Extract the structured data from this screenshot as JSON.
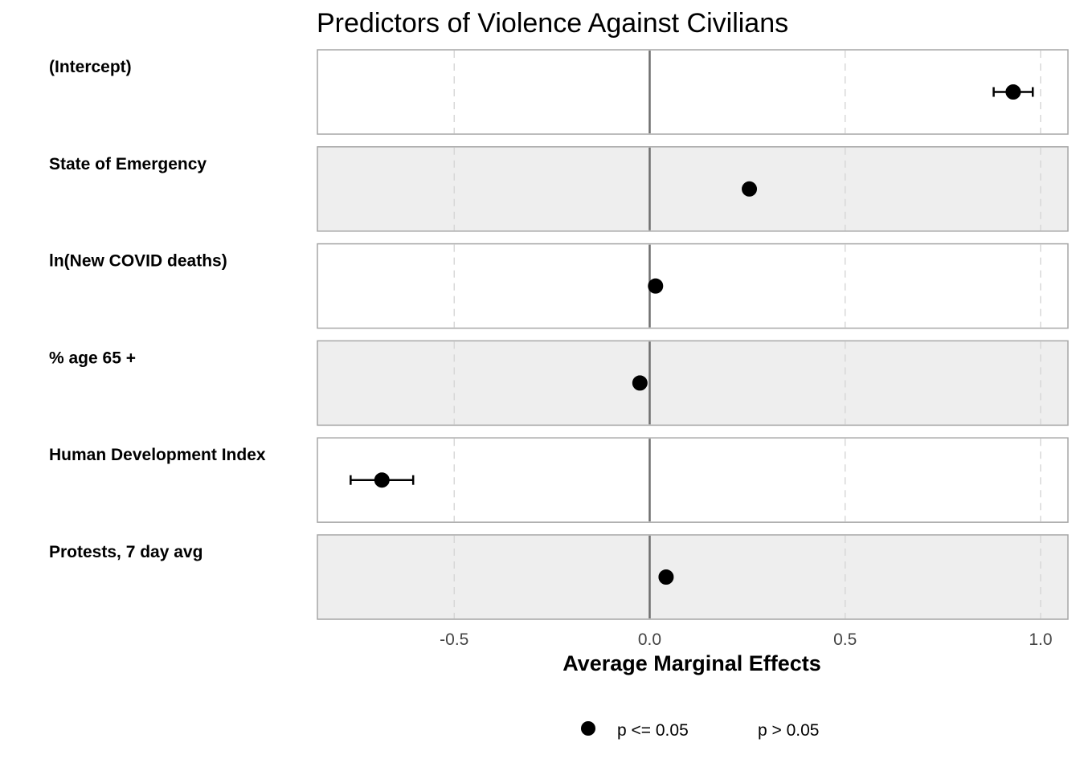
{
  "chart_data": {
    "type": "scatter",
    "subtype": "coefficient-plot",
    "title": "Predictors of Violence Against Civilians",
    "xlabel": "Average Marginal Effects",
    "ylabel": "",
    "xlim": [
      -0.85,
      1.07
    ],
    "x_ticks": [
      -0.5,
      0.0,
      0.5,
      1.0
    ],
    "x_tick_labels": [
      "-0.5",
      "0.0",
      "0.5",
      "1.0"
    ],
    "reference_line": 0.0,
    "grid": "vertical dashed",
    "row_backgrounds": [
      "#ffffff",
      "#eeeeee"
    ],
    "rows": [
      {
        "label": "(Intercept)",
        "estimate": 0.93,
        "ci_low": 0.88,
        "ci_high": 0.98,
        "significant": true
      },
      {
        "label": "State of Emergency",
        "estimate": 0.255,
        "ci_low": 0.245,
        "ci_high": 0.265,
        "significant": true
      },
      {
        "label": "ln(New COVID deaths)",
        "estimate": 0.015,
        "ci_low": 0.008,
        "ci_high": 0.022,
        "significant": true
      },
      {
        "label": "% age 65 +",
        "estimate": -0.025,
        "ci_low": -0.033,
        "ci_high": -0.017,
        "significant": true
      },
      {
        "label": "Human Development Index",
        "estimate": -0.685,
        "ci_low": -0.765,
        "ci_high": -0.605,
        "significant": true
      },
      {
        "label": "Protests, 7 day avg",
        "estimate": 0.042,
        "ci_low": 0.035,
        "ci_high": 0.049,
        "significant": true
      }
    ],
    "legend": {
      "position": "bottom",
      "items": [
        {
          "label": "p <= 0.05",
          "marker": "filled-circle"
        },
        {
          "label": "p > 0.05",
          "marker": "none"
        }
      ]
    }
  }
}
